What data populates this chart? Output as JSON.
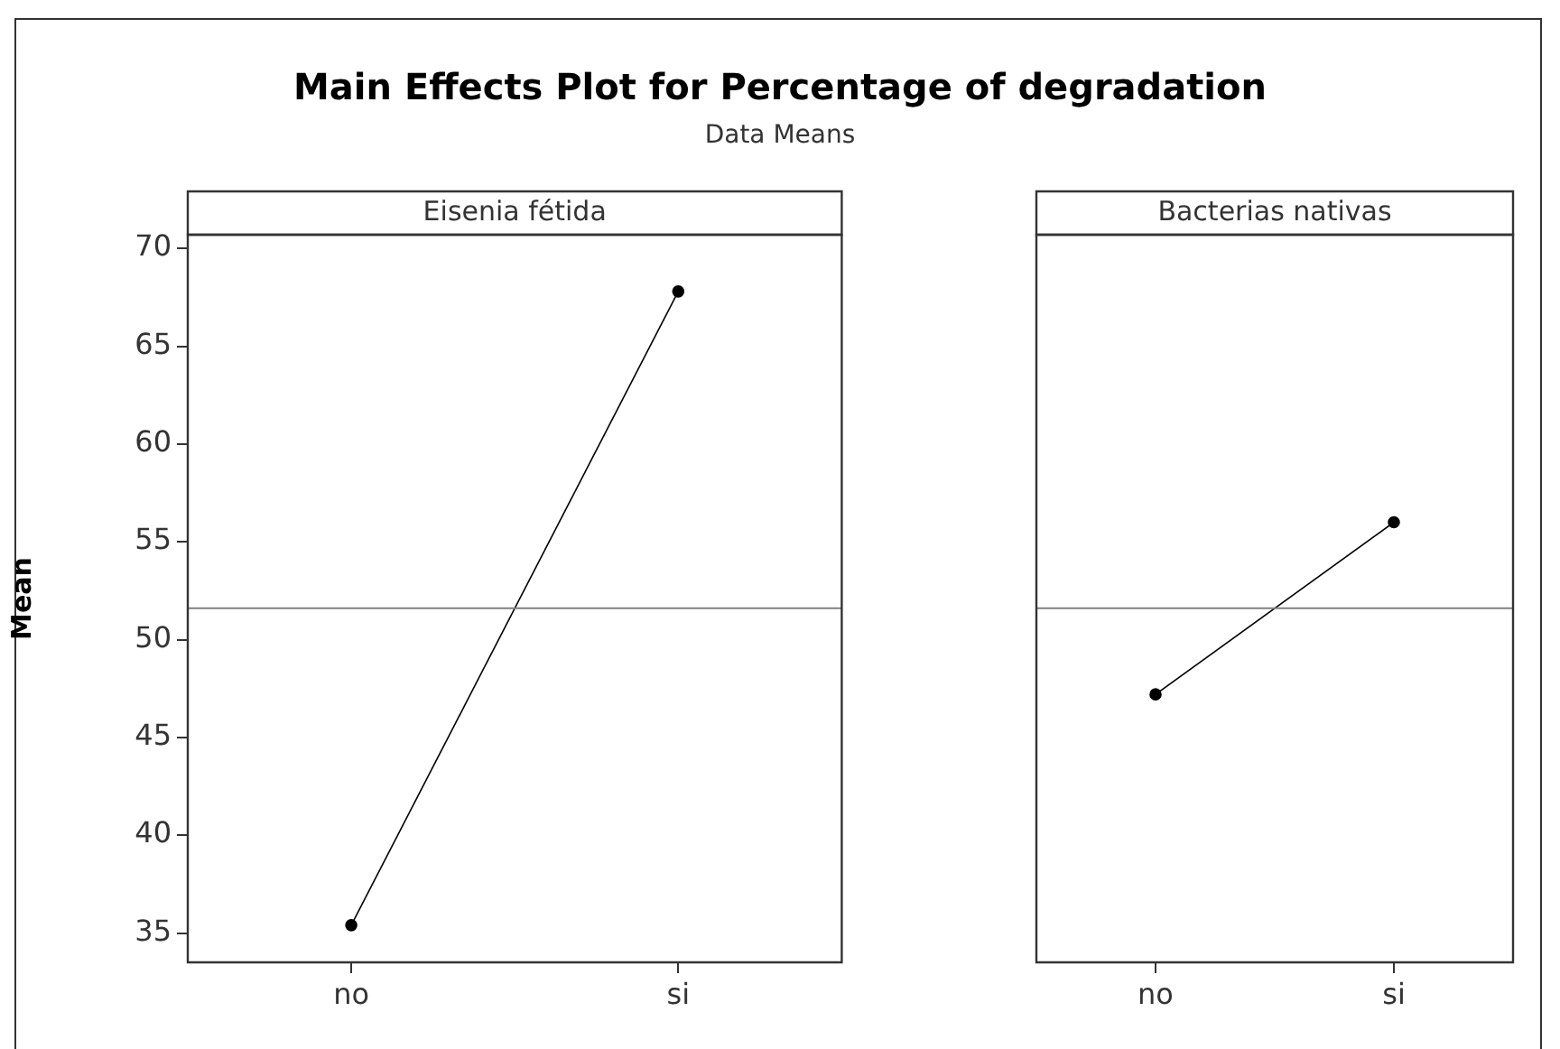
{
  "chart_data": [
    {
      "type": "line",
      "title": "Main Effects Plot for Percentage of degradation",
      "subtitle": "Data Means",
      "xlabel": "Eisenia fétida",
      "ylabel": "Mean",
      "categories": [
        "no",
        "si"
      ],
      "values": [
        35.4,
        67.8
      ],
      "color": "#000000",
      "marker": "circle",
      "ylim": [
        33.5,
        70.7
      ],
      "yticks": [
        35,
        40,
        45,
        50,
        55,
        60,
        65,
        70
      ],
      "ref_lines": [
        {
          "axis": "y",
          "value": 51.6,
          "color": "#808080"
        }
      ]
    },
    {
      "type": "line",
      "xlabel": "Bacterias nativas",
      "categories": [
        "no",
        "si"
      ],
      "values": [
        47.2,
        56.0
      ],
      "color": "#000000",
      "marker": "circle",
      "ylim": [
        33.5,
        70.7
      ],
      "yticks": [
        35,
        40,
        45,
        50,
        55,
        60,
        65,
        70
      ],
      "tick_labels": "x",
      "ref_lines": [
        {
          "axis": "y",
          "value": 51.6,
          "color": "#808080"
        }
      ]
    }
  ]
}
